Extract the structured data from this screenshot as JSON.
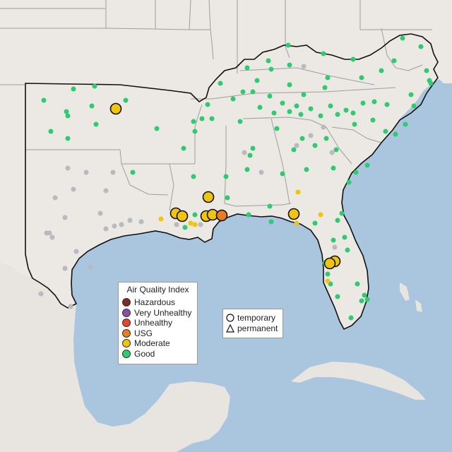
{
  "legend": {
    "title": "Air Quality Index",
    "categories": [
      {
        "label": "Hazardous",
        "color": "#7e2a26"
      },
      {
        "label": "Very Unhealthy",
        "color": "#8c4fa8"
      },
      {
        "label": "Unhealthy",
        "color": "#e6452a"
      },
      {
        "label": "USG",
        "color": "#e87e1e"
      },
      {
        "label": "Moderate",
        "color": "#f1c40f"
      },
      {
        "label": "Good",
        "color": "#2ecc71"
      }
    ],
    "no_data_color": "#b7bbbf"
  },
  "monitor_types": [
    {
      "label": "temporary",
      "shape": "circle"
    },
    {
      "label": "permanent",
      "shape": "triangle"
    }
  ]
}
